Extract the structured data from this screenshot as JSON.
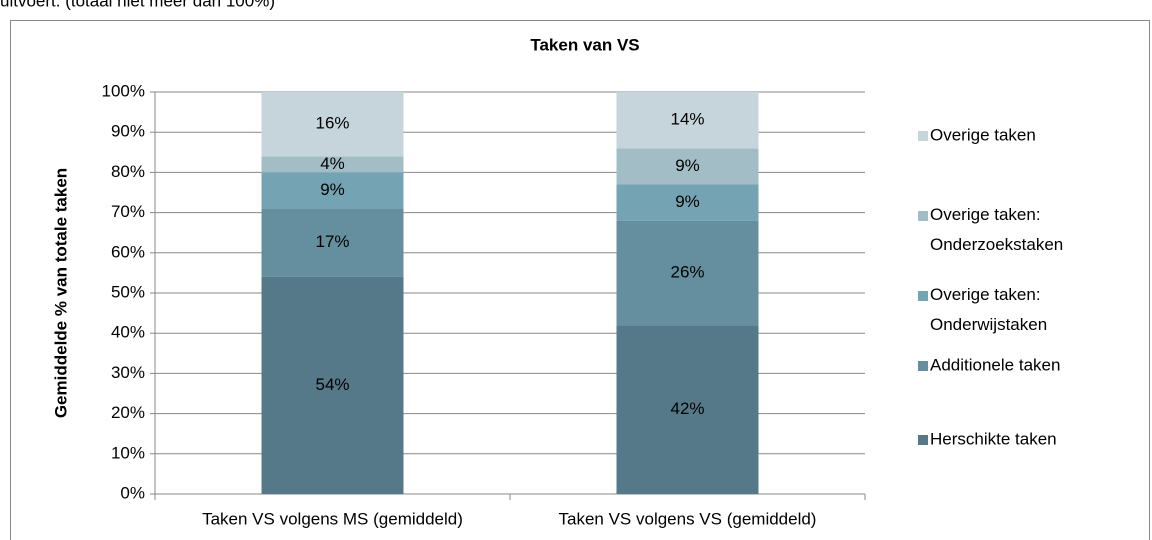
{
  "caption": "uitvoert. (totaal niet meer dan 100%)",
  "chart_data": {
    "type": "stacked_bar",
    "title": "Taken van VS",
    "y_label": "Gemiddelde  % van totale taken",
    "categories": [
      "Taken VS volgens MS (gemiddeld)",
      "Taken VS volgens VS (gemiddeld)"
    ],
    "series": [
      {
        "name": "Herschikte taken",
        "color": "#56798a",
        "values": [
          54,
          42
        ],
        "value_labels": [
          "54%",
          "42%"
        ]
      },
      {
        "name": "Additionele taken",
        "color": "#658f9e",
        "values": [
          17,
          26
        ],
        "value_labels": [
          "17%",
          "26%"
        ]
      },
      {
        "name": "Overige taken: Onderwijstaken",
        "color": "#74a3b3",
        "values": [
          9,
          9
        ],
        "value_labels": [
          "9%",
          "9%"
        ]
      },
      {
        "name": "Overige taken: Onderzoekstaken",
        "color": "#a3bdc7",
        "values": [
          4,
          9
        ],
        "value_labels": [
          "4%",
          "9%"
        ]
      },
      {
        "name": "Overige taken",
        "color": "#c6d4db",
        "values": [
          16,
          14
        ],
        "value_labels": [
          "16%",
          "14%"
        ]
      }
    ],
    "ylim": [
      0,
      100
    ],
    "yticks": [
      {
        "value": 0,
        "label": "0%"
      },
      {
        "value": 10,
        "label": "10%"
      },
      {
        "value": 20,
        "label": "20%"
      },
      {
        "value": 30,
        "label": "30%"
      },
      {
        "value": 40,
        "label": "40%"
      },
      {
        "value": 50,
        "label": "50%"
      },
      {
        "value": 60,
        "label": "60%"
      },
      {
        "value": 70,
        "label": "70%"
      },
      {
        "value": 80,
        "label": "80%"
      },
      {
        "value": 90,
        "label": "90%"
      },
      {
        "value": 100,
        "label": "100%"
      }
    ],
    "grid": true,
    "legend": "right"
  }
}
